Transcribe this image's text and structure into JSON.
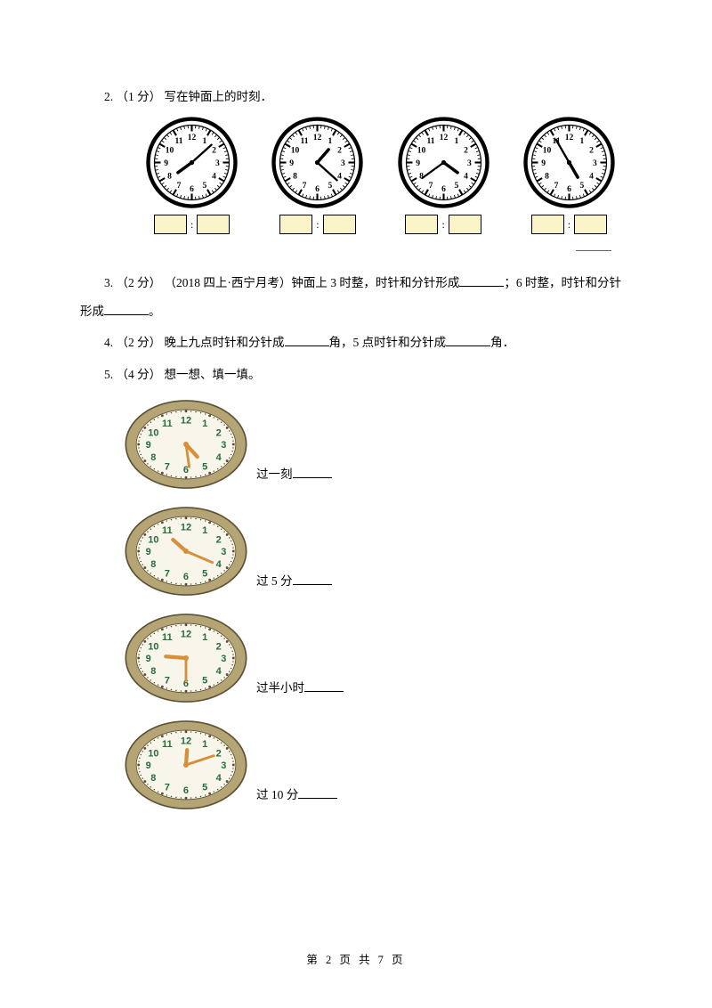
{
  "q2": {
    "label": "2. （1 分） 写在钟面上的时刻．",
    "clock_outer": "#000000",
    "clock_face": "#ffffff",
    "clock_text": "#000000",
    "box_bg": "#f8f4c8",
    "clocks": [
      {
        "hour_angle": 234,
        "min_angle": 48
      },
      {
        "hour_angle": 41,
        "min_angle": 132
      },
      {
        "hour_angle": 126,
        "min_angle": 234
      },
      {
        "hour_angle": 150,
        "min_angle": 330
      }
    ]
  },
  "q3": {
    "text_a": "3. （2 分） （2018 四上·西宁月考）钟面上 3 时整，时针和分针形成",
    "text_b": "；6 时整，时针和分针",
    "text_c": "形成",
    "text_d": "。"
  },
  "q4": {
    "text_a": "4. （2 分） 晚上九点时针和分针成",
    "text_b": "角，5 点时针和分针成",
    "text_c": "角．"
  },
  "q5": {
    "label": "5. （4 分） 想一想、填一填。",
    "oval_fill": "#b5a574",
    "oval_face": "#f8f5ea",
    "oval_text": "#286b3c",
    "oval_hand": "#d68f3a",
    "oval_rim": "#5c5338",
    "items": [
      {
        "hour_angle": 146,
        "min_angle": 174,
        "label": "过一刻"
      },
      {
        "hour_angle": 320,
        "min_angle": 120,
        "label": "过 5 分"
      },
      {
        "hour_angle": 276,
        "min_angle": 180,
        "label": "过半小时"
      },
      {
        "hour_angle": 3,
        "min_angle": 66,
        "label": "过 10 分"
      }
    ]
  },
  "footer": "第 2 页 共 7 页"
}
